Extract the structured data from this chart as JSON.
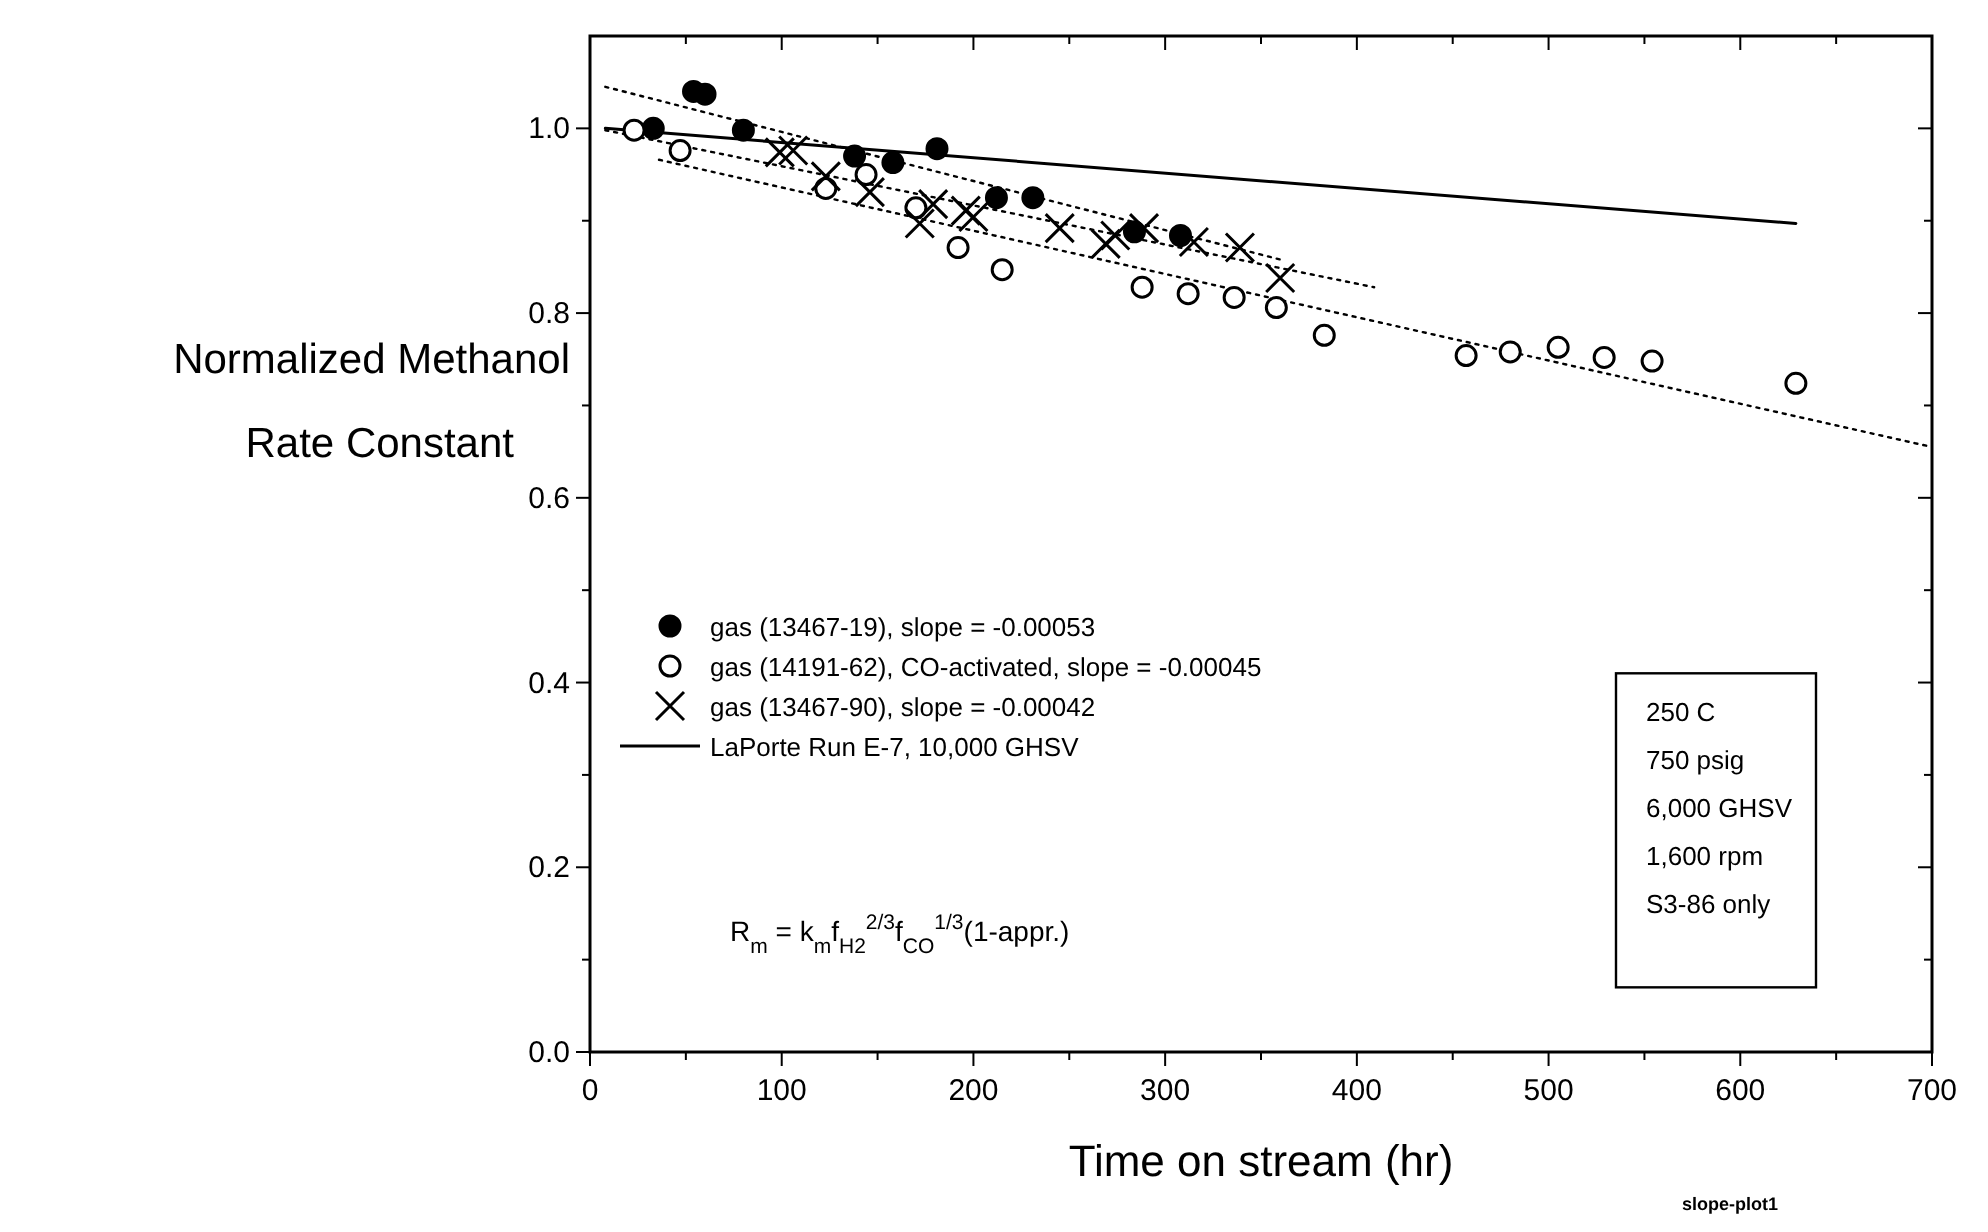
{
  "chart_data": {
    "type": "scatter",
    "ylabel": "Normalized Methanol Rate Constant",
    "xlabel": "Time on stream (hr)",
    "xlim": [
      0,
      700
    ],
    "ylim": [
      0,
      1.1
    ],
    "xticks": [
      0,
      {
        "value": 50,
        "label": null
      },
      100,
      {
        "value": 150,
        "label": null
      },
      200,
      {
        "value": 250,
        "label": null
      },
      300,
      {
        "value": 350,
        "label": null
      },
      400,
      {
        "value": 450,
        "label": null
      },
      500,
      {
        "value": 550,
        "label": null
      },
      600,
      {
        "value": 650,
        "label": null
      },
      700
    ],
    "yticks": [
      {
        "value": 0,
        "label": "0.0"
      },
      {
        "value": 0.1,
        "label": null
      },
      {
        "value": 0.2,
        "label": "0.2"
      },
      {
        "value": 0.3,
        "label": null
      },
      {
        "value": 0.4,
        "label": "0.4"
      },
      {
        "value": 0.5,
        "label": null
      },
      {
        "value": 0.6,
        "label": "0.6"
      },
      {
        "value": 0.7,
        "label": null
      },
      {
        "value": 0.8,
        "label": "0.8"
      },
      {
        "value": 0.9,
        "label": null
      },
      {
        "value": 1.0,
        "label": "1.0"
      }
    ],
    "grid": false,
    "legend": "left",
    "series": [
      {
        "name": "gas (13467-19), slope = -0.00053",
        "marker": "circle",
        "color": "#000000",
        "x": [
          33,
          54,
          60,
          80,
          138,
          158,
          181,
          212,
          231,
          284,
          308
        ],
        "values": [
          1.0,
          1.04,
          1.037,
          0.998,
          0.97,
          0.963,
          0.978,
          0.925,
          0.925,
          0.888,
          0.884
        ]
      },
      {
        "name": "gas (14191-62), CO-activated, slope = -0.00045",
        "marker": "circle",
        "color": "#ffffff",
        "x": [
          23,
          47,
          123,
          144,
          170,
          192,
          215,
          288,
          312,
          336,
          358,
          383,
          457,
          480,
          505,
          529,
          554,
          629
        ],
        "values": [
          0.998,
          0.976,
          0.935,
          0.95,
          0.914,
          0.871,
          0.847,
          0.828,
          0.821,
          0.817,
          0.806,
          0.776,
          0.754,
          0.758,
          0.763,
          0.752,
          0.748,
          0.724
        ]
      },
      {
        "name": "gas (13467-90), slope = -0.00042",
        "marker": "cross",
        "color": "#000000",
        "x": [
          99,
          106,
          123,
          146,
          172,
          179,
          196,
          200,
          245,
          269,
          274,
          289,
          315,
          339,
          360
        ],
        "values": [
          0.974,
          0.976,
          0.948,
          0.931,
          0.897,
          0.918,
          0.911,
          0.904,
          0.892,
          0.875,
          0.884,
          0.892,
          0.877,
          0.871,
          0.838
        ]
      },
      {
        "name": "LaPorte Run E-7, 10,000 GHSV",
        "type": "line",
        "line_style": "solid",
        "color": "#000000",
        "x": [
          8,
          629
        ],
        "values": [
          1.0,
          0.897
        ]
      },
      {
        "type": "line",
        "line_style": "dotted",
        "color": "#000000",
        "x": [
          8,
          360
        ],
        "values": [
          1.045,
          0.858
        ]
      },
      {
        "type": "line",
        "line_style": "dotted",
        "color": "#000000",
        "x": [
          8,
          409
        ],
        "values": [
          0.998,
          0.828
        ]
      },
      {
        "type": "line",
        "line_style": "dotted",
        "color": "#000000",
        "x": [
          36,
          700
        ],
        "values": [
          0.966,
          0.655
        ]
      }
    ],
    "annotations": [
      "R$_{m}$ = k$_{m}$f$_{H2}$$^{2/3}$f$_{CO}$$^{1/3}$(1-appr.)",
      "250 C\n750 psig\n6,000 GHSV\n1,600 rpm\nS3-86 only",
      "slope-plot1"
    ]
  }
}
